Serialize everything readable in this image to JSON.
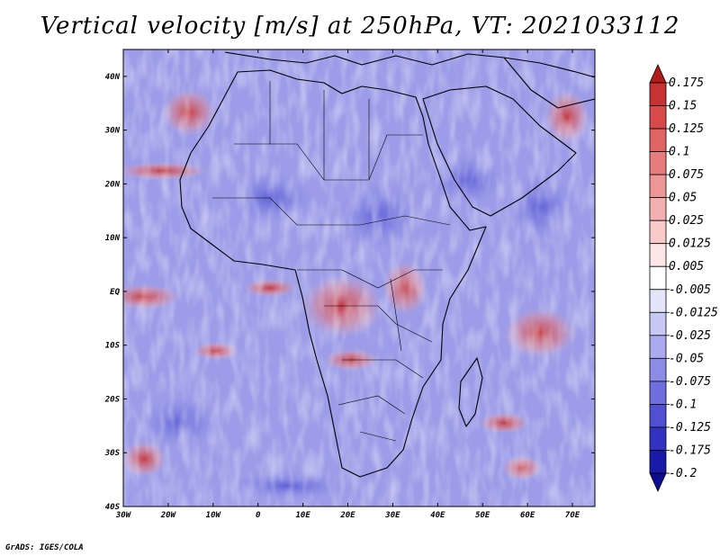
{
  "title": "Vertical velocity [m/s] at 250hPa, VT: 2021033112",
  "credit": "GrADS: IGES/COLA",
  "map": {
    "lat_labels": [
      "40N",
      "30N",
      "20N",
      "10N",
      "EQ",
      "10S",
      "20S",
      "30S",
      "40S"
    ],
    "lon_labels": [
      "30W",
      "20W",
      "10W",
      "0",
      "10E",
      "20E",
      "30E",
      "40E",
      "50E",
      "60E",
      "70E"
    ],
    "lat_range": [
      -40,
      45
    ],
    "lon_range": [
      -30,
      75
    ]
  },
  "colorbar": {
    "labels": [
      "0.175",
      "0.15",
      "0.125",
      "0.1",
      "0.075",
      "0.05",
      "0.025",
      "0.0125",
      "0.005",
      "-0.005",
      "-0.0125",
      "-0.025",
      "-0.05",
      "-0.075",
      "-0.1",
      "-0.125",
      "-0.175",
      "-0.2"
    ],
    "colors": [
      "#b01c1c",
      "#c83232",
      "#d84a4a",
      "#e06464",
      "#e87c7c",
      "#ee9696",
      "#f3b0b0",
      "#f8caca",
      "#fce6e6",
      "#ffffff",
      "#e4e4fa",
      "#c8c8f4",
      "#aaaaee",
      "#8c8ce6",
      "#6e6ede",
      "#5050d2",
      "#3232c0",
      "#1a1aa8",
      "#0c0c90"
    ]
  }
}
